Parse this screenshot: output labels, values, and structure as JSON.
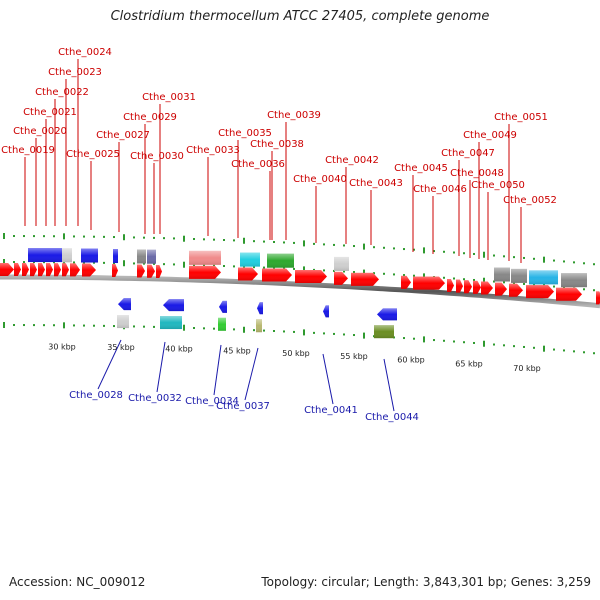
{
  "title": "Clostridium thermocellum ATCC 27405, complete genome",
  "footer": {
    "accession": "Accession: NC_009012",
    "topology": "Topology: circular; Length: 3,843,301 bp; Genes: 3,259"
  },
  "colors": {
    "forward_label": "#cc0000",
    "reverse_label": "#1a1aaa",
    "backbone": "#666666",
    "tick": "#2f9a2f",
    "cds": "#ff0000"
  },
  "scale_labels": [
    "30 kbp",
    "35 kbp",
    "40 kbp",
    "45 kbp",
    "50 kbp",
    "55 kbp",
    "60 kbp",
    "65 kbp",
    "70 kbp"
  ],
  "forward_labels": [
    "Cthe_0019",
    "Cthe_0020",
    "Cthe_0021",
    "Cthe_0022",
    "Cthe_0023",
    "Cthe_0024",
    "Cthe_0025",
    "Cthe_0027",
    "Cthe_0029",
    "Cthe_0030",
    "Cthe_0031",
    "Cthe_0033",
    "Cthe_0035",
    "Cthe_0036",
    "Cthe_0038",
    "Cthe_0039",
    "Cthe_0040",
    "Cthe_0042",
    "Cthe_0043",
    "Cthe_0045",
    "Cthe_0046",
    "Cthe_0047",
    "Cthe_0048",
    "Cthe_0049",
    "Cthe_0050",
    "Cthe_0051",
    "Cthe_0052"
  ],
  "reverse_labels": [
    "Cthe_0028",
    "Cthe_0032",
    "Cthe_0034",
    "Cthe_0037",
    "Cthe_0041",
    "Cthe_0044"
  ],
  "feature_colors": {
    "blue_gene": "#1a1ae6",
    "gray": "#888888",
    "light_gray": "#cfcfcf",
    "slate": "#6a6aa8",
    "pink": "#f08a8a",
    "cyan": "#22cfe0",
    "green": "#2ea82e",
    "light_green": "#33cc33",
    "teal": "#20b8c0",
    "khaki": "#b8b870",
    "olive": "#6b8e23",
    "dark_gray": "#666666",
    "sky": "#28b4e6"
  }
}
